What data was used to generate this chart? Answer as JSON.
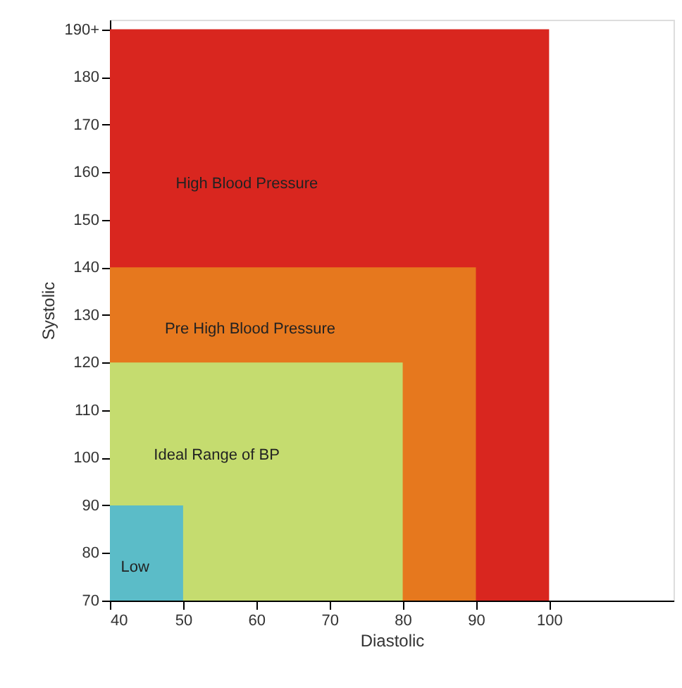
{
  "chart_data": {
    "type": "area",
    "xlabel": "Diastolic",
    "ylabel": "Systolic",
    "xlim": [
      40,
      117
    ],
    "xticks": [
      40,
      50,
      60,
      70,
      80,
      90,
      100
    ],
    "ylim": [
      70,
      192
    ],
    "yticks": [
      70,
      80,
      90,
      100,
      110,
      120,
      130,
      140,
      150,
      160,
      170,
      180,
      {
        "value": 190,
        "label": "190+"
      }
    ],
    "grid": false,
    "series": [
      {
        "name": "High Blood Pressure",
        "color": "#d9261f",
        "x": [
          40,
          100
        ],
        "values": [
          190,
          190
        ]
      },
      {
        "name": "Pre High Blood Pressure",
        "color": "#e6781e",
        "x": [
          40,
          90
        ],
        "values": [
          140,
          140
        ]
      },
      {
        "name": "Ideal Range of BP",
        "color": "#c5dc6f",
        "x": [
          40,
          80
        ],
        "values": [
          120,
          120
        ]
      },
      {
        "name": "Low",
        "color": "#5bbcc8",
        "x": [
          40,
          50
        ],
        "values": [
          90,
          90
        ]
      }
    ]
  }
}
